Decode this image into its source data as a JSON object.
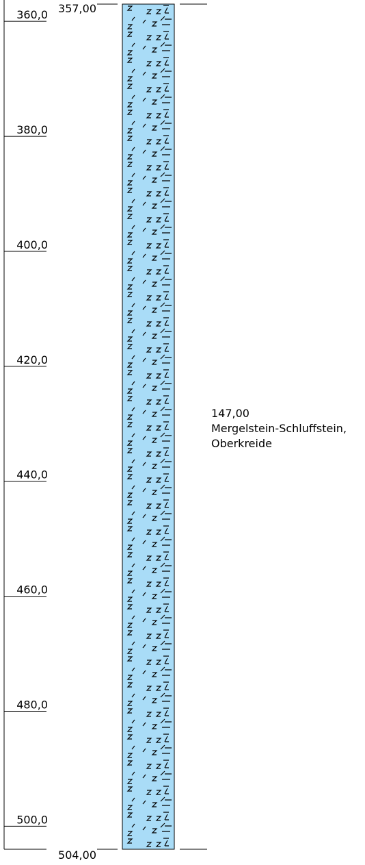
{
  "scale": {
    "ticks": [
      {
        "value": 360,
        "label": "360,0"
      },
      {
        "value": 380,
        "label": "380,0"
      },
      {
        "value": 400,
        "label": "400,0"
      },
      {
        "value": 420,
        "label": "420,0"
      },
      {
        "value": 440,
        "label": "440,0"
      },
      {
        "value": 460,
        "label": "460,0"
      },
      {
        "value": 480,
        "label": "480,0"
      },
      {
        "value": 500,
        "label": "500,0"
      }
    ]
  },
  "layer": {
    "top": {
      "value": 357,
      "label": "357,00"
    },
    "bottom": {
      "value": 504,
      "label": "504,00"
    },
    "thickness": {
      "value": 147,
      "label": "147,00"
    },
    "description": [
      "Mergelstein-Schluffstein,",
      "Oberkreide"
    ]
  }
}
